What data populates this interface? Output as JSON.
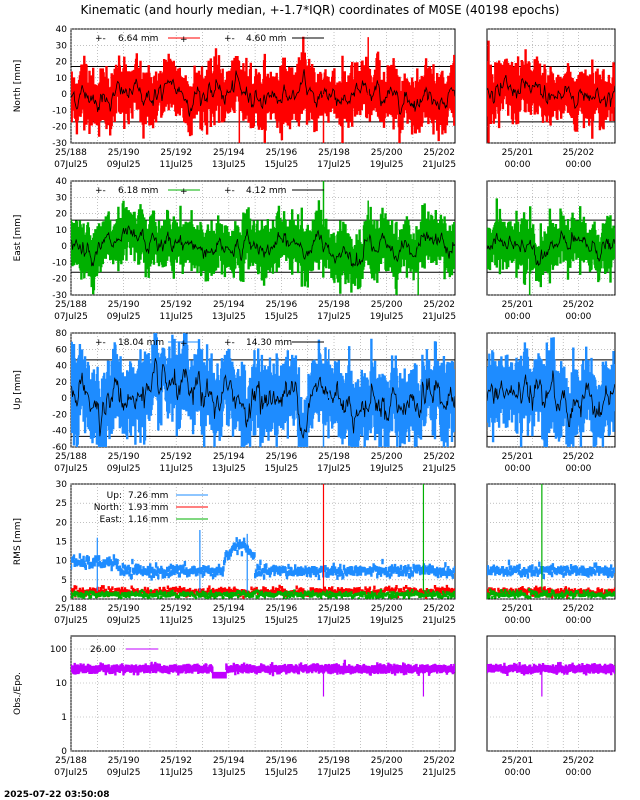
{
  "title": "Kinematic (and hourly median, +-1.7*IQR) coordinates of M0SE (40198 epochs)",
  "timestamp": "2025-07-22 03:50:08",
  "colors": {
    "north": "#ff0000",
    "east": "#00b000",
    "up": "#1e8cff",
    "obs": "#c000ff",
    "median": "#000000",
    "grid": "#9a9a9a"
  },
  "x_main": {
    "ticks_top": [
      "25/188",
      "25/190",
      "25/192",
      "25/194",
      "25/196",
      "25/198",
      "25/200",
      "25/202"
    ],
    "ticks_bottom": [
      "07Jul25",
      "09Jul25",
      "11Jul25",
      "13Jul25",
      "15Jul25",
      "17Jul25",
      "19Jul25",
      "21Jul25"
    ]
  },
  "x_zoom": {
    "ticks_top": [
      "25/201",
      "25/202"
    ],
    "ticks_bottom": [
      "00:00",
      "00:00"
    ]
  },
  "panels": {
    "north": {
      "ylabel": "North [mm]",
      "yticks": [
        "40",
        "30",
        "20",
        "10",
        "0",
        "-10",
        "-20",
        "-30"
      ],
      "legend_scatter": "6.64 mm",
      "legend_median": "4.60 mm",
      "legend_pm": "+-"
    },
    "east": {
      "ylabel": "East [mm]",
      "yticks": [
        "40",
        "30",
        "20",
        "10",
        "0",
        "-10",
        "-20",
        "-30"
      ],
      "legend_scatter": "6.18 mm",
      "legend_median": "4.12 mm",
      "legend_pm": "+-"
    },
    "up": {
      "ylabel": "Up [mm]",
      "yticks": [
        "80",
        "60",
        "40",
        "20",
        "0",
        "-20",
        "-40",
        "-60"
      ],
      "legend_scatter": "18.04 mm",
      "legend_median": "14.30 mm",
      "legend_pm": "+-"
    },
    "rms": {
      "ylabel": "RMS [mm]",
      "yticks": [
        "30",
        "25",
        "20",
        "15",
        "10",
        "5",
        "0"
      ],
      "legend": [
        {
          "label": "Up:",
          "value": "7.26 mm"
        },
        {
          "label": "North:",
          "value": "1.93 mm"
        },
        {
          "label": "East:",
          "value": "1.16 mm"
        }
      ]
    },
    "obs": {
      "ylabel": "Obs./Epo.",
      "yticks": [
        "100",
        "10",
        "1",
        "0"
      ],
      "legend_value": "26.00"
    }
  },
  "chart_data": [
    {
      "type": "scatter",
      "name_ref": "north",
      "title": "Kinematic (and hourly median, +-1.7*IQR) coordinates of M0SE (40198 epochs)",
      "ylabel": "North [mm]",
      "x_range_doy": [
        188,
        202.6
      ],
      "ylim": [
        -30,
        40
      ],
      "median_band": [
        -17,
        17
      ],
      "median_amplitude": 4.6,
      "scatter_amplitude": 6.64,
      "outlier_spikes": [
        {
          "x": 197.6,
          "y": -30
        },
        {
          "x": 199.3,
          "y": 35
        },
        {
          "x": 194.4,
          "y": -30
        }
      ],
      "zoom_x_range_doy": [
        200.5,
        202.6
      ],
      "grid": true
    },
    {
      "type": "scatter",
      "name_ref": "east",
      "ylabel": "East [mm]",
      "x_range_doy": [
        188,
        202.6
      ],
      "ylim": [
        -30,
        40
      ],
      "median_band": [
        -16,
        16
      ],
      "median_amplitude": 4.12,
      "scatter_amplitude": 6.18,
      "outlier_spikes": [
        {
          "x": 197.6,
          "y": 40
        },
        {
          "x": 199.3,
          "y": 28
        },
        {
          "x": 201.2,
          "y": -30
        }
      ],
      "zoom_x_range_doy": [
        200.5,
        202.6
      ],
      "grid": true
    },
    {
      "type": "scatter",
      "name_ref": "up",
      "ylabel": "Up [mm]",
      "x_range_doy": [
        188,
        202.6
      ],
      "ylim": [
        -60,
        80
      ],
      "median_band": [
        -47,
        47
      ],
      "median_amplitude": 14.3,
      "scatter_amplitude": 18.04,
      "outlier_spikes": [
        {
          "x": 197.6,
          "y": -60
        },
        {
          "x": 197.8,
          "y": 60
        }
      ],
      "zoom_x_range_doy": [
        200.5,
        202.6
      ],
      "grid": true
    },
    {
      "type": "line",
      "name_ref": "rms",
      "ylabel": "RMS [mm]",
      "x_range_doy": [
        188,
        202.6
      ],
      "ylim": [
        0,
        30
      ],
      "series": [
        {
          "name": "Up",
          "mean": 7.26
        },
        {
          "name": "North",
          "mean": 1.93
        },
        {
          "name": "East",
          "mean": 1.16
        }
      ],
      "spikes": [
        {
          "x": 197.6,
          "y": 30
        },
        {
          "x": 201.4,
          "y": 30
        },
        {
          "x": 192.9,
          "y": 18
        },
        {
          "x": 189.0,
          "y": 16
        },
        {
          "x": 194.7,
          "y": 17
        }
      ],
      "zoom_x_range_doy": [
        200.5,
        202.6
      ],
      "grid": true
    },
    {
      "type": "line",
      "name_ref": "obs",
      "ylabel": "Obs./Epo.",
      "x_range_doy": [
        188,
        202.6
      ],
      "ylim_log": [
        0,
        200
      ],
      "series": [
        {
          "name": "Obs./Epo.",
          "mean": 26.0
        }
      ],
      "dips": [
        {
          "x": 197.6,
          "y": 4
        },
        {
          "x": 201.4,
          "y": 4
        }
      ],
      "zoom_x_range_doy": [
        200.5,
        202.6
      ],
      "grid": true
    }
  ]
}
